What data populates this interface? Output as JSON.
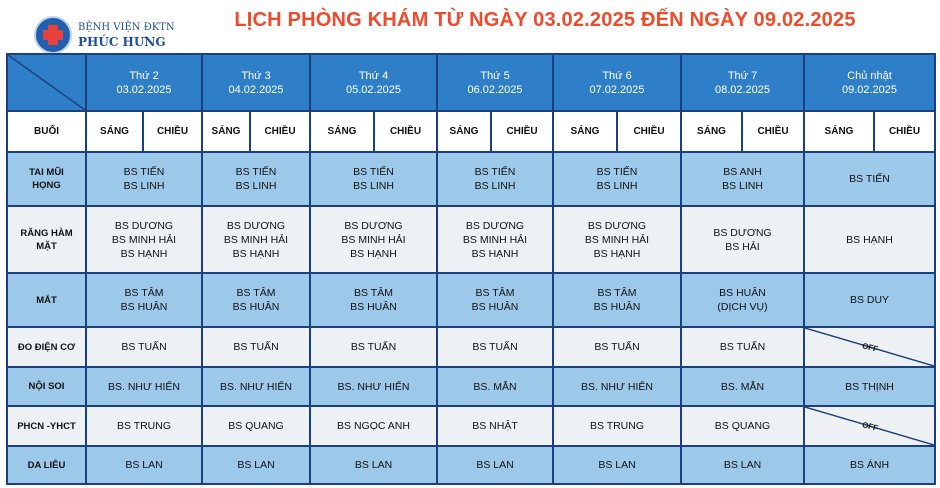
{
  "header": {
    "logo_line1": "BỆNH VIỆN ĐKTN",
    "logo_line2": "PHÚC HƯNG",
    "title": "LỊCH PHÒNG KHÁM TỪ NGÀY 03.02.2025 ĐẾN NGÀY 09.02.2025"
  },
  "days": [
    {
      "name": "Thứ 2",
      "date": "03.02.2025"
    },
    {
      "name": "Thứ 3",
      "date": "04.02.2025"
    },
    {
      "name": "Thứ 4",
      "date": "05.02.2025"
    },
    {
      "name": "Thứ 5",
      "date": "06.02.2025"
    },
    {
      "name": "Thứ 6",
      "date": "07.02.2025"
    },
    {
      "name": "Thứ 7",
      "date": "08.02.2025"
    },
    {
      "name": "Chủ nhật",
      "date": "09.02.2025"
    }
  ],
  "session_header": {
    "label": "BUỔI",
    "morning": "SÁNG",
    "afternoon": "CHIỀU"
  },
  "rows": [
    {
      "label_1": "TAI MŨI",
      "label_2": "HỌNG",
      "cells": [
        [
          "BS TIẾN",
          "BS LINH"
        ],
        [
          "BS TIẾN",
          "BS LINH"
        ],
        [
          "BS TIẾN",
          "BS LINH"
        ],
        [
          "BS TIẾN",
          "BS LINH"
        ],
        [
          "BS TIẾN",
          "BS LINH"
        ],
        [
          "BS ANH",
          "BS LINH"
        ],
        [
          "BS TIẾN"
        ]
      ]
    },
    {
      "label_1": "RĂNG HÀM",
      "label_2": "MẶT",
      "cells": [
        [
          "BS DƯƠNG",
          "BS MINH HẢI",
          "BS HẠNH"
        ],
        [
          "BS DƯƠNG",
          "BS MINH HẢI",
          "BS HẠNH"
        ],
        [
          "BS DƯƠNG",
          "BS MINH HẢI",
          "BS HẠNH"
        ],
        [
          "BS DƯƠNG",
          "BS MINH HẢI",
          "BS HẠNH"
        ],
        [
          "BS DƯƠNG",
          "BS MINH HẢI",
          "BS HẠNH"
        ],
        [
          "BS DƯƠNG",
          "BS HẢI"
        ],
        [
          "BS HẠNH"
        ]
      ]
    },
    {
      "label_1": "MẮT",
      "cells": [
        [
          "BS TÂM",
          "BS HUÂN"
        ],
        [
          "BS TÂM",
          "BS HUÂN"
        ],
        [
          "BS TÂM",
          "BS HUÂN"
        ],
        [
          "BS TÂM",
          "BS HUÂN"
        ],
        [
          "BS TÂM",
          "BS HUÂN"
        ],
        [
          "BS HUÂN",
          "(DỊCH VỤ)"
        ],
        [
          "BS DUY"
        ]
      ]
    },
    {
      "label_1": "ĐO ĐIỆN CƠ",
      "cells": [
        [
          "BS TUẤN"
        ],
        [
          "BS TUẤN"
        ],
        [
          "BS TUẤN"
        ],
        [
          "BS TUẤN"
        ],
        [
          "BS TUẤN"
        ],
        [
          "BS TUẤN"
        ]
      ],
      "off": "OFF"
    },
    {
      "label_1": "NỘI SOI",
      "cells": [
        [
          "BS. NHƯ HIỂN"
        ],
        [
          "BS. NHƯ HIỂN"
        ],
        [
          "BS. NHƯ HIỂN"
        ],
        [
          "BS. MẪN"
        ],
        [
          "BS. NHƯ HIỂN"
        ],
        [
          "BS. MẪN"
        ],
        [
          "BS THỊNH"
        ]
      ]
    },
    {
      "label_1": "PHCN -YHCT",
      "cells": [
        [
          "BS TRUNG"
        ],
        [
          "BS QUANG"
        ],
        [
          "BS NGỌC ANH"
        ],
        [
          "BS NHẬT"
        ],
        [
          "BS TRUNG"
        ],
        [
          "BS QUANG"
        ]
      ],
      "off": "OFF"
    },
    {
      "label_1": "DA LIỄU",
      "cells": [
        [
          "BS LAN"
        ],
        [
          "BS LAN"
        ],
        [
          "BS LAN"
        ],
        [
          "BS LAN"
        ],
        [
          "BS LAN"
        ],
        [
          "BS LAN"
        ],
        [
          "BS ÁNH"
        ]
      ]
    }
  ]
}
